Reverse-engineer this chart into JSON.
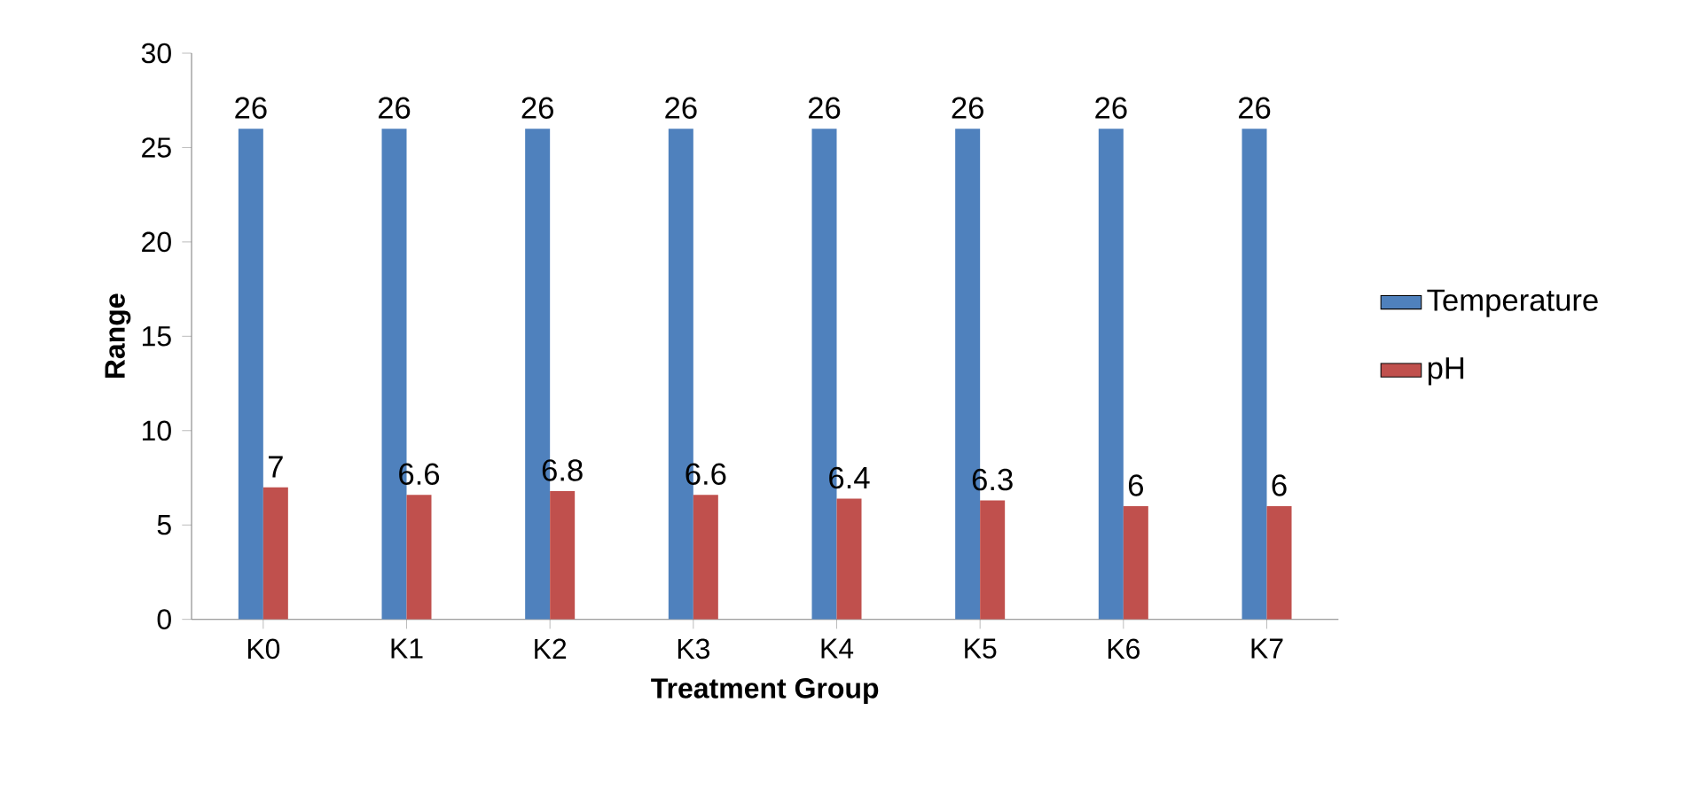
{
  "chart_data": {
    "type": "bar",
    "xlabel": "Treatment Group",
    "ylabel": "Range",
    "categories": [
      "K0",
      "K1",
      "K2",
      "K3",
      "K4",
      "K5",
      "K6",
      "K7"
    ],
    "series": [
      {
        "name": "Temperature",
        "color": "#4f81bd",
        "values": [
          26,
          26,
          26,
          26,
          26,
          26,
          26,
          26
        ]
      },
      {
        "name": "pH",
        "color": "#c0504d",
        "values": [
          7,
          6.6,
          6.8,
          6.6,
          6.4,
          6.3,
          6,
          6
        ]
      }
    ],
    "ylim": [
      0,
      30
    ],
    "yticks": [
      0,
      5,
      10,
      15,
      20,
      25,
      30
    ],
    "grid": false,
    "legend": "right",
    "data_labels": true
  }
}
